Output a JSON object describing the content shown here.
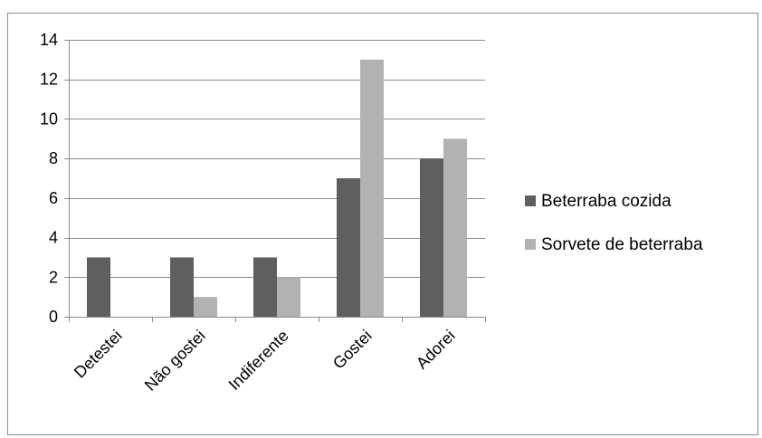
{
  "chart_data": {
    "type": "bar",
    "categories": [
      "Detestei",
      "Não gostei",
      "Indiferente",
      "Gostei",
      "Adorei"
    ],
    "series": [
      {
        "name": "Beterraba cozida",
        "values": [
          3,
          3,
          3,
          7,
          8
        ],
        "color": "#5f5f5f"
      },
      {
        "name": "Sorvete de beterraba",
        "values": [
          0,
          1,
          2,
          13,
          9
        ],
        "color": "#b2b2b2"
      }
    ],
    "ylim": [
      0,
      14
    ],
    "yticks": [
      0,
      2,
      4,
      6,
      8,
      10,
      12,
      14
    ],
    "grid": true,
    "legend_position": "right",
    "title": "",
    "xlabel": "",
    "ylabel": ""
  }
}
